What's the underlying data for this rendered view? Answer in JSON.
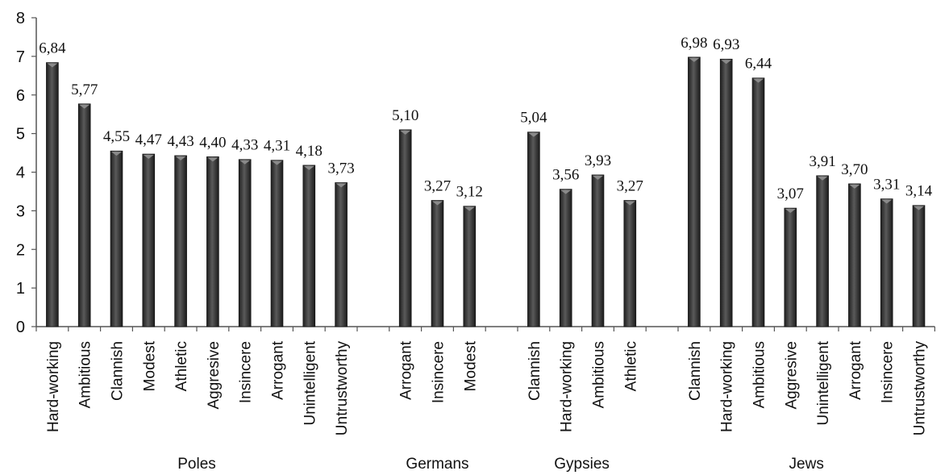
{
  "chart_data": {
    "type": "bar",
    "ylim": [
      0,
      8
    ],
    "yticks": [
      0,
      1,
      2,
      3,
      4,
      5,
      6,
      7,
      8
    ],
    "grid": false,
    "legend": "none",
    "colors": {
      "bar": "#3a3a3a",
      "bar_highlight": "#8a8a8a",
      "axis": "#555555"
    },
    "groups": [
      {
        "name": "Poles",
        "categories": [
          "Hard-working",
          "Ambitious",
          "Clannish",
          "Modest",
          "Athletic",
          "Aggresive",
          "Insincere",
          "Arrogant",
          "Unintelligent",
          "Untrustworthy"
        ],
        "values": [
          6.84,
          5.77,
          4.55,
          4.47,
          4.43,
          4.4,
          4.33,
          4.31,
          4.18,
          3.73
        ],
        "labels": [
          "6,84",
          "5,77",
          "4,55",
          "4,47",
          "4,43",
          "4,40",
          "4,33",
          "4,31",
          "4,18",
          "3,73"
        ]
      },
      {
        "name": "Germans",
        "categories": [
          "Arrogant",
          "Insincere",
          "Modest"
        ],
        "values": [
          5.1,
          3.27,
          3.12
        ],
        "labels": [
          "5,10",
          "3,27",
          "3,12"
        ]
      },
      {
        "name": "Gypsies",
        "categories": [
          "Clannish",
          "Hard-working",
          "Ambitious",
          "Athletic"
        ],
        "values": [
          5.04,
          3.56,
          3.93,
          3.27
        ],
        "labels": [
          "5,04",
          "3,56",
          "3,93",
          "3,27"
        ]
      },
      {
        "name": "Jews",
        "categories": [
          "Clannish",
          "Hard-working",
          "Ambitious",
          "Aggresive",
          "Unintelligent",
          "Arrogant",
          "Insincere",
          "Untrustworthy"
        ],
        "values": [
          6.98,
          6.93,
          6.44,
          3.07,
          3.91,
          3.7,
          3.31,
          3.14
        ],
        "labels": [
          "6,98",
          "6,93",
          "6,44",
          "3,07",
          "3,91",
          "3,70",
          "3,31",
          "3,14"
        ]
      }
    ]
  }
}
